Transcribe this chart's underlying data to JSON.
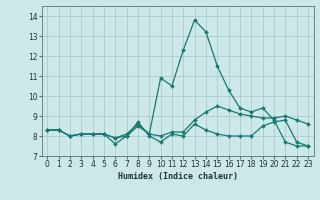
{
  "xlabel": "Humidex (Indice chaleur)",
  "ylabel": "",
  "xlim": [
    -0.5,
    23.5
  ],
  "ylim": [
    7.0,
    14.5
  ],
  "yticks": [
    7,
    8,
    9,
    10,
    11,
    12,
    13,
    14
  ],
  "xticks": [
    0,
    1,
    2,
    3,
    4,
    5,
    6,
    7,
    8,
    9,
    10,
    11,
    12,
    13,
    14,
    15,
    16,
    17,
    18,
    19,
    20,
    21,
    22,
    23
  ],
  "bg_color": "#cce8e8",
  "grid_color": "#aacccc",
  "line_color": "#1a7a6e",
  "line1_x": [
    0,
    1,
    2,
    3,
    4,
    5,
    6,
    7,
    8,
    9,
    10,
    11,
    12,
    13,
    14,
    15,
    16,
    17,
    18,
    19,
    20,
    21,
    22,
    23
  ],
  "line1_y": [
    8.3,
    8.3,
    8.0,
    8.1,
    8.1,
    8.1,
    7.6,
    8.0,
    8.7,
    8.0,
    7.7,
    8.1,
    8.0,
    8.6,
    8.3,
    8.1,
    8.0,
    8.0,
    8.0,
    8.5,
    8.7,
    8.8,
    7.7,
    7.5
  ],
  "line2_x": [
    0,
    1,
    2,
    3,
    4,
    5,
    6,
    7,
    8,
    9,
    10,
    11,
    12,
    13,
    14,
    15,
    16,
    17,
    18,
    19,
    20,
    21,
    22,
    23
  ],
  "line2_y": [
    8.3,
    8.3,
    8.0,
    8.1,
    8.1,
    8.1,
    7.9,
    8.0,
    8.5,
    8.1,
    8.0,
    8.2,
    8.2,
    8.8,
    9.2,
    9.5,
    9.3,
    9.1,
    9.0,
    8.9,
    8.9,
    9.0,
    8.8,
    8.6
  ],
  "line3_x": [
    0,
    1,
    2,
    3,
    4,
    5,
    6,
    7,
    8,
    9,
    10,
    11,
    12,
    13,
    14,
    15,
    16,
    17,
    18,
    19,
    20,
    21,
    22,
    23
  ],
  "line3_y": [
    8.3,
    8.3,
    8.0,
    8.1,
    8.1,
    8.1,
    7.9,
    8.1,
    8.6,
    8.1,
    10.9,
    10.5,
    12.3,
    13.8,
    13.2,
    11.5,
    10.3,
    9.4,
    9.2,
    9.4,
    8.8,
    7.7,
    7.5,
    7.5
  ]
}
